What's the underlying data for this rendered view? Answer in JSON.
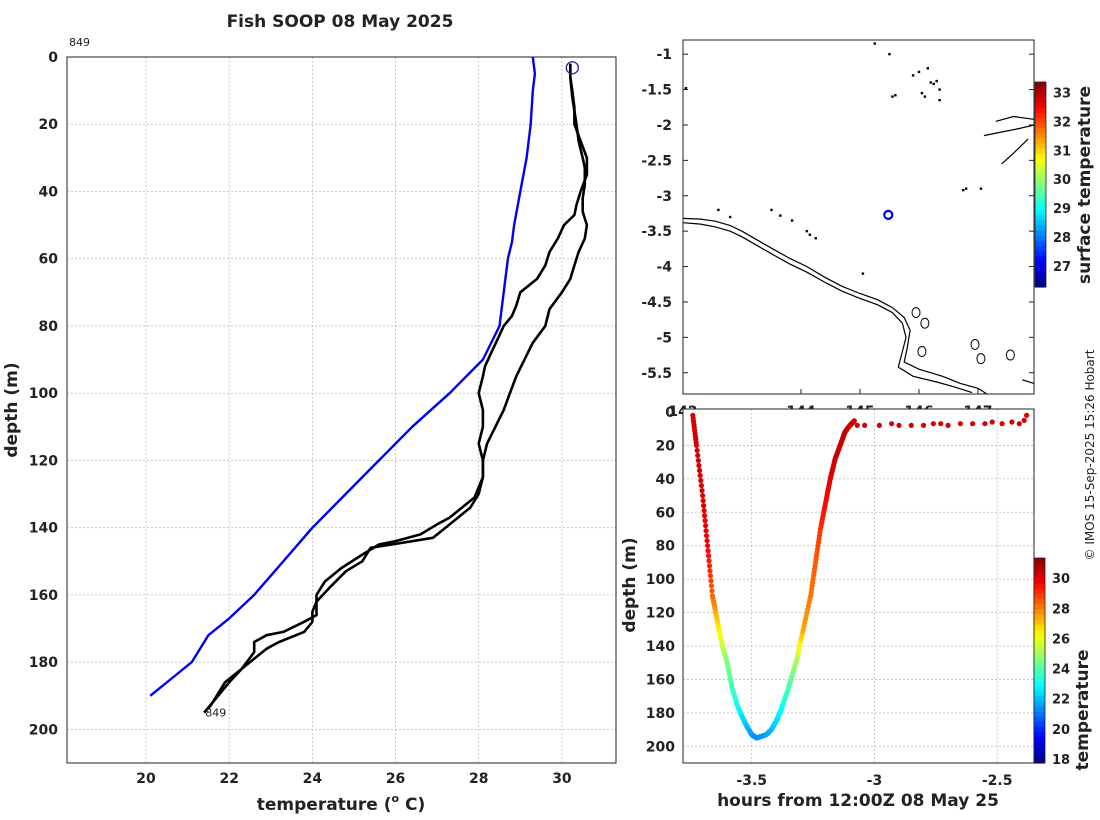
{
  "figure": {
    "watermark": "© IMOS 15-Sep-2025 15:26 Hobart"
  },
  "chart_data": [
    {
      "type": "line",
      "title": "Fish SOOP 08 May 2025",
      "xlabel": "temperature (",
      "xlabel_sup": "o",
      "xlabel_end": " C)",
      "ylabel": "depth (m)",
      "xlim": [
        18.1,
        31.3
      ],
      "ylim": [
        0,
        210
      ],
      "y_reversed": true,
      "grid": true,
      "xticks": [
        20,
        22,
        24,
        26,
        28,
        30
      ],
      "yticks": [
        0,
        20,
        40,
        60,
        80,
        100,
        120,
        140,
        160,
        180,
        200
      ],
      "annotations": [
        {
          "text": "849",
          "anchor": "top-left"
        },
        {
          "text": "849",
          "anchor": "profile-bottom",
          "x": 21.4,
          "y": 195
        }
      ],
      "surface_marker": {
        "x": 30.25,
        "y": 2
      },
      "series": [
        {
          "name": "climatology",
          "color": "#0000ee",
          "points": [
            [
              29.3,
              0
            ],
            [
              29.35,
              5
            ],
            [
              29.3,
              10
            ],
            [
              29.25,
              20
            ],
            [
              29.15,
              30
            ],
            [
              29.0,
              40
            ],
            [
              28.85,
              50
            ],
            [
              28.8,
              55
            ],
            [
              28.7,
              60
            ],
            [
              28.6,
              70
            ],
            [
              28.5,
              80
            ],
            [
              28.1,
              90
            ],
            [
              27.3,
              100
            ],
            [
              26.4,
              110
            ],
            [
              25.6,
              120
            ],
            [
              24.8,
              130
            ],
            [
              24.0,
              140
            ],
            [
              23.3,
              150
            ],
            [
              22.6,
              160
            ],
            [
              22.0,
              167
            ],
            [
              21.5,
              172
            ],
            [
              21.1,
              180
            ],
            [
              20.6,
              185
            ],
            [
              20.1,
              190
            ]
          ]
        },
        {
          "name": "profile-down",
          "color": "#000000",
          "points": [
            [
              30.2,
              2
            ],
            [
              30.2,
              6
            ],
            [
              30.25,
              12
            ],
            [
              30.3,
              16
            ],
            [
              30.35,
              20
            ],
            [
              30.4,
              25
            ],
            [
              30.5,
              30
            ],
            [
              30.55,
              33
            ],
            [
              30.55,
              38
            ],
            [
              30.5,
              42
            ],
            [
              30.5,
              46
            ],
            [
              30.6,
              50
            ],
            [
              30.55,
              54
            ],
            [
              30.4,
              58
            ],
            [
              30.3,
              62
            ],
            [
              30.2,
              66
            ],
            [
              30.0,
              70
            ],
            [
              29.7,
              75
            ],
            [
              29.6,
              80
            ],
            [
              29.3,
              85
            ],
            [
              29.1,
              90
            ],
            [
              28.9,
              95
            ],
            [
              28.75,
              100
            ],
            [
              28.6,
              105
            ],
            [
              28.4,
              110
            ],
            [
              28.2,
              115
            ],
            [
              28.1,
              120
            ],
            [
              28.1,
              125
            ],
            [
              28.0,
              130
            ],
            [
              27.8,
              134
            ],
            [
              27.5,
              137
            ],
            [
              27.2,
              140
            ],
            [
              26.9,
              143
            ],
            [
              25.4,
              146
            ],
            [
              25.2,
              150
            ],
            [
              24.8,
              153
            ],
            [
              24.4,
              158
            ],
            [
              24.1,
              162
            ],
            [
              24.0,
              165
            ],
            [
              24.0,
              168
            ],
            [
              23.8,
              171
            ],
            [
              23.2,
              174
            ],
            [
              22.9,
              176
            ],
            [
              22.7,
              178
            ],
            [
              22.5,
              180
            ],
            [
              22.2,
              183
            ],
            [
              21.9,
              186
            ],
            [
              21.7,
              190
            ],
            [
              21.55,
              193
            ],
            [
              21.4,
              195
            ]
          ]
        },
        {
          "name": "profile-up",
          "color": "#000000",
          "points": [
            [
              21.4,
              195
            ],
            [
              21.6,
              192
            ],
            [
              21.8,
              189
            ],
            [
              22.0,
              186
            ],
            [
              22.3,
              182
            ],
            [
              22.6,
              177
            ],
            [
              22.6,
              174
            ],
            [
              22.9,
              172
            ],
            [
              23.3,
              171
            ],
            [
              23.8,
              168
            ],
            [
              24.1,
              166
            ],
            [
              24.1,
              160
            ],
            [
              24.3,
              156
            ],
            [
              24.7,
              152
            ],
            [
              25.2,
              148
            ],
            [
              25.6,
              145
            ],
            [
              26.0,
              144
            ],
            [
              26.6,
              142
            ],
            [
              27.0,
              139
            ],
            [
              27.3,
              137
            ],
            [
              27.6,
              134
            ],
            [
              27.9,
              131
            ],
            [
              28.0,
              128
            ],
            [
              28.1,
              125
            ],
            [
              28.1,
              120
            ],
            [
              28.0,
              115
            ],
            [
              28.1,
              110
            ],
            [
              28.1,
              105
            ],
            [
              28.0,
              100
            ],
            [
              28.1,
              95
            ],
            [
              28.15,
              92
            ],
            [
              28.3,
              88
            ],
            [
              28.45,
              84
            ],
            [
              28.6,
              80
            ],
            [
              28.8,
              77
            ],
            [
              28.9,
              74
            ],
            [
              29.0,
              70
            ],
            [
              29.4,
              66
            ],
            [
              29.6,
              62
            ],
            [
              29.7,
              58
            ],
            [
              29.9,
              54
            ],
            [
              30.05,
              50
            ],
            [
              30.3,
              47
            ],
            [
              30.35,
              44
            ],
            [
              30.45,
              40
            ],
            [
              30.6,
              35
            ],
            [
              30.6,
              30
            ],
            [
              30.45,
              25
            ],
            [
              30.3,
              20
            ],
            [
              30.3,
              15
            ],
            [
              30.25,
              10
            ],
            [
              30.2,
              6
            ],
            [
              30.2,
              2
            ]
          ]
        }
      ]
    },
    {
      "type": "map",
      "xlim": [
        142.0,
        147.95
      ],
      "ylim": [
        -5.8,
        -0.8
      ],
      "xticks": [
        142,
        144,
        145,
        146,
        147
      ],
      "yticks": [
        -1,
        -1.5,
        -2,
        -2.5,
        -3,
        -3.5,
        -4,
        -4.5,
        -5,
        -5.5
      ],
      "position_marker": {
        "lon": 145.48,
        "lat": -3.27
      },
      "colorbar": {
        "label": "surface temperature",
        "ticks": [
          27,
          28,
          29,
          30,
          31,
          32,
          33
        ],
        "range": [
          26.3,
          33.4
        ]
      },
      "coastlines": [
        [
          [
            142.0,
            -3.32
          ],
          [
            142.3,
            -3.33
          ],
          [
            142.55,
            -3.36
          ],
          [
            142.8,
            -3.42
          ],
          [
            143.0,
            -3.5
          ],
          [
            143.25,
            -3.62
          ],
          [
            143.5,
            -3.74
          ],
          [
            143.8,
            -3.88
          ],
          [
            144.1,
            -4.0
          ],
          [
            144.4,
            -4.15
          ],
          [
            144.7,
            -4.28
          ],
          [
            145.0,
            -4.38
          ],
          [
            145.3,
            -4.47
          ],
          [
            145.55,
            -4.58
          ],
          [
            145.75,
            -4.72
          ],
          [
            145.85,
            -4.9
          ],
          [
            145.8,
            -5.15
          ],
          [
            145.75,
            -5.35
          ],
          [
            146.0,
            -5.45
          ],
          [
            146.4,
            -5.55
          ],
          [
            146.7,
            -5.65
          ],
          [
            147.0,
            -5.72
          ],
          [
            147.15,
            -5.8
          ]
        ],
        [
          [
            142.0,
            -3.38
          ],
          [
            142.3,
            -3.4
          ],
          [
            142.55,
            -3.44
          ],
          [
            142.8,
            -3.5
          ],
          [
            143.0,
            -3.58
          ],
          [
            143.25,
            -3.7
          ],
          [
            143.5,
            -3.82
          ],
          [
            143.8,
            -3.96
          ],
          [
            144.1,
            -4.08
          ],
          [
            144.4,
            -4.22
          ],
          [
            144.7,
            -4.35
          ],
          [
            145.0,
            -4.45
          ],
          [
            145.3,
            -4.54
          ],
          [
            145.55,
            -4.65
          ],
          [
            145.72,
            -4.8
          ],
          [
            145.78,
            -5.0
          ],
          [
            145.72,
            -5.2
          ],
          [
            145.65,
            -5.42
          ],
          [
            145.9,
            -5.55
          ],
          [
            146.3,
            -5.63
          ],
          [
            146.6,
            -5.7
          ],
          [
            146.9,
            -5.78
          ]
        ],
        [
          [
            147.3,
            -1.95
          ],
          [
            147.6,
            -1.88
          ],
          [
            147.95,
            -1.92
          ]
        ],
        [
          [
            147.1,
            -2.15
          ],
          [
            147.4,
            -2.1
          ],
          [
            147.7,
            -2.05
          ],
          [
            147.95,
            -2.0
          ]
        ],
        [
          [
            147.4,
            -2.55
          ],
          [
            147.6,
            -2.4
          ],
          [
            147.85,
            -2.2
          ]
        ],
        [
          [
            147.75,
            -5.6
          ],
          [
            147.95,
            -5.65
          ]
        ]
      ],
      "islands": [
        [
          146.2,
          -1.4
        ],
        [
          146.25,
          -1.42
        ],
        [
          146.3,
          -1.38
        ],
        [
          146.35,
          -1.5
        ],
        [
          146.1,
          -1.6
        ],
        [
          146.05,
          -1.55
        ],
        [
          145.9,
          -1.3
        ],
        [
          146.0,
          -1.25
        ],
        [
          146.15,
          -1.2
        ],
        [
          145.5,
          -1.0
        ],
        [
          145.25,
          -0.85
        ],
        [
          145.6,
          -1.58
        ],
        [
          145.55,
          -1.6
        ],
        [
          142.05,
          -1.48
        ],
        [
          146.35,
          -1.65
        ],
        [
          146.8,
          -2.9
        ],
        [
          146.75,
          -2.92
        ],
        [
          147.05,
          -2.9
        ],
        [
          143.5,
          -3.2
        ],
        [
          143.65,
          -3.28
        ],
        [
          143.85,
          -3.35
        ],
        [
          144.1,
          -3.5
        ],
        [
          144.25,
          -3.6
        ],
        [
          144.15,
          -3.55
        ],
        [
          142.6,
          -3.2
        ],
        [
          142.8,
          -3.3
        ],
        [
          145.05,
          -4.1
        ],
        [
          145.95,
          -4.65
        ],
        [
          146.1,
          -4.8
        ],
        [
          146.95,
          -5.1
        ],
        [
          147.05,
          -5.3
        ],
        [
          147.55,
          -5.25
        ],
        [
          146.05,
          -5.2
        ]
      ]
    },
    {
      "type": "scatter",
      "xlabel": "hours from 12:00Z 08 May 25",
      "ylabel": "depth (m)",
      "xlim": [
        -3.78,
        -2.35
      ],
      "ylim": [
        0,
        210
      ],
      "y_reversed": true,
      "grid": true,
      "xticks": [
        -3.5,
        -3,
        -2.5
      ],
      "yticks": [
        0,
        20,
        40,
        60,
        80,
        100,
        120,
        140,
        160,
        180,
        200
      ],
      "colorbar": {
        "label": "temperature",
        "ticks": [
          18,
          20,
          22,
          24,
          26,
          28,
          30
        ],
        "range": [
          17.8,
          31.4
        ]
      },
      "profile": {
        "t": [
          -3.74,
          -3.725,
          -3.7,
          -3.68,
          -3.66,
          -3.64,
          -3.62,
          -3.6,
          -3.58,
          -3.56,
          -3.54,
          -3.52,
          -3.5,
          -3.48,
          -3.46,
          -3.44,
          -3.42,
          -3.4,
          -3.38,
          -3.35,
          -3.32,
          -3.29,
          -3.26,
          -3.24,
          -3.22,
          -3.2,
          -3.18,
          -3.16,
          -3.14,
          -3.12,
          -3.1,
          -3.08
        ],
        "depth": [
          2,
          20,
          50,
          80,
          110,
          125,
          140,
          150,
          165,
          175,
          182,
          188,
          193,
          195,
          194,
          193,
          190,
          185,
          178,
          165,
          150,
          130,
          110,
          90,
          70,
          55,
          40,
          28,
          20,
          12,
          8,
          5
        ],
        "temp": [
          30.2,
          30.3,
          30.2,
          29.8,
          28.4,
          27.0,
          25.6,
          24.6,
          23.9,
          23.2,
          22.6,
          22.1,
          21.6,
          21.4,
          21.5,
          21.7,
          22.0,
          22.4,
          22.9,
          23.8,
          25.0,
          27.5,
          28.1,
          28.5,
          29.0,
          29.6,
          30.0,
          30.4,
          30.5,
          30.5,
          30.4,
          30.3
        ]
      },
      "surface_points": {
        "t": [
          -3.07,
          -3.04,
          -2.98,
          -2.93,
          -2.9,
          -2.85,
          -2.8,
          -2.76,
          -2.73,
          -2.7,
          -2.65,
          -2.6,
          -2.55,
          -2.52,
          -2.48,
          -2.44,
          -2.41,
          -2.39,
          -2.38
        ],
        "depth": [
          8,
          8,
          8,
          7,
          8,
          8,
          8,
          7,
          7,
          8,
          7,
          7,
          7,
          6,
          7,
          6,
          7,
          5,
          2
        ],
        "temp": [
          30.2,
          30.3,
          30.3,
          30.2,
          30.3,
          30.3,
          30.2,
          30.3,
          30.2,
          30.3,
          30.2,
          30.3,
          30.2,
          30.3,
          30.3,
          30.2,
          30.3,
          30.2,
          30.3
        ]
      }
    }
  ]
}
